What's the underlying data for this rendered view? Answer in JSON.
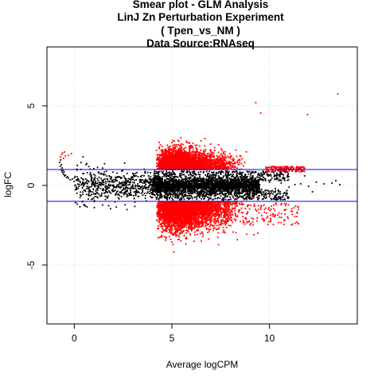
{
  "chart_data": {
    "type": "scatter",
    "title_lines": [
      "Smear plot - GLM Analysis",
      "LinJ Zn Perturbation Experiment",
      "( Tpen_vs_NM )",
      "Data Source:RNAseq"
    ],
    "xlabel": "Average logCPM",
    "ylabel": "logFC",
    "xlim": [
      -1.4,
      14.5
    ],
    "ylim": [
      -8.7,
      8.7
    ],
    "x_ticks": [
      0,
      5,
      10
    ],
    "y_ticks": [
      -5,
      0,
      5
    ],
    "x_tick_labels": [
      "0",
      "5",
      "10"
    ],
    "y_tick_labels": [
      "-5",
      "0",
      "5"
    ],
    "grid": true,
    "threshold_lines": [
      1,
      -1
    ],
    "colors": {
      "not_significant": "#000000",
      "significant": "#ff0000",
      "threshold_line": "#0000ff",
      "grid": "#d3d3d3"
    },
    "series": [
      {
        "x": [
          -0.75,
          -0.72,
          -0.7,
          -0.68,
          -0.66,
          -0.64,
          -0.62,
          -0.6,
          -0.57,
          -0.55,
          -0.52,
          -0.5,
          -0.45,
          -0.4,
          -0.35,
          -0.3,
          -0.2,
          -0.1,
          0,
          0.2,
          0.4,
          0.6,
          0.8,
          1,
          1.2,
          1.4,
          1.6,
          1.8,
          2,
          2.2,
          2.4,
          2.6,
          2.8,
          3,
          3.2,
          3.4,
          3.6,
          3.8,
          4,
          4.2,
          4.4,
          4.6,
          4.8,
          5,
          7.6,
          7.8,
          8,
          8.2,
          8.4,
          8.6,
          8.8,
          9,
          9.2,
          9.4,
          9.6,
          9.8,
          10,
          10.3,
          10.6,
          11,
          11.3,
          11.6,
          12,
          12.4,
          12.8,
          13.2,
          13.6,
          1.1,
          1.5,
          2.1,
          2.7,
          3.3,
          3.9,
          8.3,
          9.1,
          9.7,
          10.4,
          11.8,
          12.2,
          13.4
        ],
        "y": [
          1.45,
          1.2,
          1.6,
          1.0,
          1.3,
          0.9,
          1.1,
          0.8,
          0.95,
          0.7,
          0.85,
          0.6,
          0.65,
          0.5,
          0.55,
          0.45,
          0.35,
          0.4,
          0.25,
          0.3,
          0.1,
          0.2,
          -0.1,
          0.05,
          -0.2,
          0.15,
          -0.3,
          0.25,
          -0.35,
          0.3,
          -0.4,
          0.45,
          -0.5,
          0.5,
          -0.45,
          0.55,
          -0.5,
          0.6,
          -0.55,
          0.6,
          -0.6,
          0.65,
          -0.65,
          0.7,
          -0.55,
          0.6,
          -0.45,
          0.5,
          -0.4,
          0.45,
          -0.35,
          0.4,
          -0.3,
          0.35,
          -0.25,
          0.3,
          0.2,
          -0.2,
          0.15,
          -0.1,
          0.05,
          0.1,
          -0.05,
          0.2,
          0.1,
          0.15,
          0.05,
          -0.55,
          0.7,
          -0.6,
          0.75,
          -0.7,
          0.8,
          0.9,
          -0.85,
          0.85,
          -0.8,
          0.6,
          -0.4,
          0.3
        ]
      },
      {
        "x": [
          -0.7,
          -0.65,
          -0.6,
          -0.55,
          -0.5,
          -0.45,
          -0.3,
          -0.15,
          9.3,
          9.55,
          11.95,
          13.5,
          9.4,
          9.2
        ],
        "y": [
          1.8,
          1.95,
          2.05,
          1.7,
          2.1,
          1.85,
          1.9,
          2.0,
          5.2,
          4.55,
          4.45,
          5.75,
          -3.0,
          -3.1
        ]
      }
    ]
  }
}
